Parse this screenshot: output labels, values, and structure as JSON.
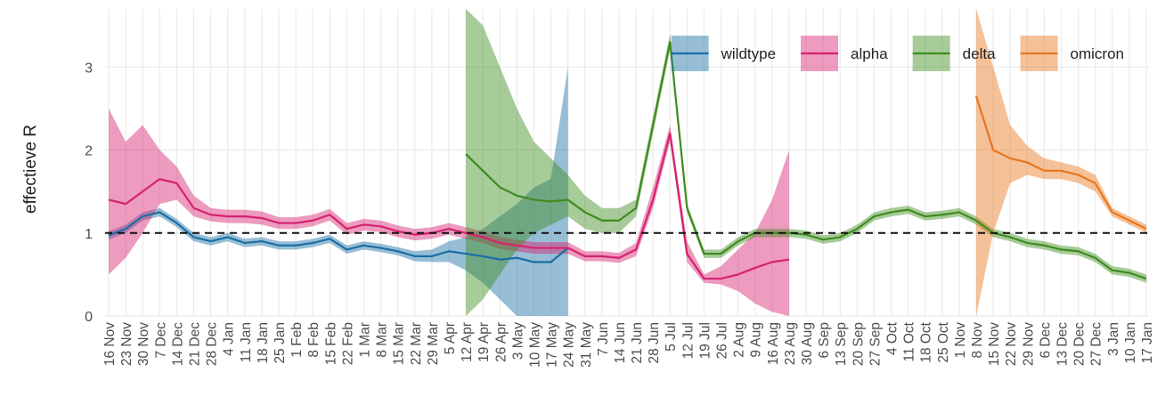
{
  "chart_data": {
    "type": "line",
    "y_label": "effectieve R",
    "categories": [
      "16 Nov",
      "23 Nov",
      "30 Nov",
      "7 Dec",
      "14 Dec",
      "21 Dec",
      "28 Dec",
      "4 Jan",
      "11 Jan",
      "18 Jan",
      "25 Jan",
      "1 Feb",
      "8 Feb",
      "15 Feb",
      "22 Feb",
      "1 Mar",
      "8 Mar",
      "15 Mar",
      "22 Mar",
      "29 Mar",
      "5 Apr",
      "12 Apr",
      "19 Apr",
      "26 Apr",
      "3 May",
      "10 May",
      "17 May",
      "24 May",
      "31 May",
      "7 Jun",
      "14 Jun",
      "21 Jun",
      "28 Jun",
      "5 Jul",
      "12 Jul",
      "19 Jul",
      "26 Jul",
      "2 Aug",
      "9 Aug",
      "16 Aug",
      "23 Aug",
      "30 Aug",
      "6 Sep",
      "13 Sep",
      "20 Sep",
      "27 Sep",
      "4 Oct",
      "11 Oct",
      "18 Oct",
      "25 Oct",
      "1 Nov",
      "8 Nov",
      "15 Nov",
      "22 Nov",
      "29 Nov",
      "6 Dec",
      "13 Dec",
      "20 Dec",
      "27 Dec",
      "3 Jan",
      "10 Jan",
      "17 Jan"
    ],
    "ylim": [
      0,
      3.7
    ],
    "yticks": [
      0,
      1,
      2,
      3
    ],
    "grid": true,
    "hline": 1,
    "legend": "top-right",
    "band_opacity": 0.45,
    "series": [
      {
        "name": "wildtype",
        "color": "#1b6ea3",
        "values": [
          0.97,
          1.05,
          1.2,
          1.25,
          1.12,
          0.95,
          0.9,
          0.95,
          0.88,
          0.9,
          0.85,
          0.85,
          0.88,
          0.93,
          0.8,
          0.85,
          0.82,
          0.78,
          0.72,
          0.72,
          0.78,
          0.75,
          0.72,
          0.68,
          0.7,
          0.65,
          0.65,
          0.82,
          null,
          null,
          null,
          null,
          null,
          null,
          null,
          null,
          null,
          null,
          null,
          null,
          null,
          null,
          null,
          null,
          null,
          null,
          null,
          null,
          null,
          null,
          null,
          null,
          null,
          null,
          null,
          null,
          null,
          null,
          null,
          null,
          null,
          null
        ],
        "lower": [
          0.92,
          1.0,
          1.15,
          1.2,
          1.07,
          0.9,
          0.85,
          0.9,
          0.83,
          0.85,
          0.8,
          0.8,
          0.83,
          0.88,
          0.75,
          0.8,
          0.77,
          0.73,
          0.66,
          0.65,
          0.65,
          0.55,
          0.4,
          0.2,
          0,
          0,
          0,
          0,
          null,
          null,
          null,
          null,
          null,
          null,
          null,
          null,
          null,
          null,
          null,
          null,
          null,
          null,
          null,
          null,
          null,
          null,
          null,
          null,
          null,
          null,
          null,
          null,
          null,
          null,
          null,
          null,
          null,
          null,
          null,
          null,
          null,
          null
        ],
        "upper": [
          1.02,
          1.1,
          1.25,
          1.3,
          1.17,
          1.0,
          0.95,
          1.0,
          0.93,
          0.95,
          0.9,
          0.9,
          0.93,
          0.98,
          0.85,
          0.9,
          0.87,
          0.83,
          0.78,
          0.8,
          0.9,
          0.95,
          1.05,
          1.2,
          1.35,
          1.55,
          1.65,
          3.0,
          null,
          null,
          null,
          null,
          null,
          null,
          null,
          null,
          null,
          null,
          null,
          null,
          null,
          null,
          null,
          null,
          null,
          null,
          null,
          null,
          null,
          null,
          null,
          null,
          null,
          null,
          null,
          null,
          null,
          null,
          null,
          null,
          null,
          null
        ]
      },
      {
        "name": "alpha",
        "color": "#d6226e",
        "values": [
          1.4,
          1.35,
          1.5,
          1.65,
          1.6,
          1.3,
          1.22,
          1.2,
          1.2,
          1.18,
          1.12,
          1.12,
          1.15,
          1.22,
          1.05,
          1.1,
          1.08,
          1.02,
          0.98,
          1.0,
          1.05,
          1.0,
          0.95,
          0.88,
          0.85,
          0.82,
          0.82,
          0.82,
          0.72,
          0.72,
          0.7,
          0.8,
          1.4,
          2.2,
          0.75,
          0.45,
          0.45,
          0.5,
          0.58,
          0.65,
          0.68,
          null,
          null,
          null,
          null,
          null,
          null,
          null,
          null,
          null,
          null,
          null,
          null,
          null,
          null,
          null,
          null,
          null,
          null,
          null,
          null,
          null
        ],
        "lower": [
          0.5,
          0.7,
          1.0,
          1.35,
          1.4,
          1.2,
          1.14,
          1.12,
          1.12,
          1.1,
          1.05,
          1.05,
          1.08,
          1.15,
          0.98,
          1.03,
          1.01,
          0.95,
          0.91,
          0.93,
          0.98,
          0.93,
          0.88,
          0.81,
          0.78,
          0.75,
          0.75,
          0.75,
          0.66,
          0.66,
          0.64,
          0.72,
          1.3,
          2.1,
          0.65,
          0.4,
          0.38,
          0.3,
          0.15,
          0.05,
          0,
          null,
          null,
          null,
          null,
          null,
          null,
          null,
          null,
          null,
          null,
          null,
          null,
          null,
          null,
          null,
          null,
          null,
          null,
          null,
          null,
          null
        ],
        "upper": [
          2.5,
          2.1,
          2.3,
          2.0,
          1.8,
          1.45,
          1.3,
          1.28,
          1.28,
          1.26,
          1.19,
          1.19,
          1.22,
          1.29,
          1.12,
          1.17,
          1.15,
          1.09,
          1.05,
          1.07,
          1.12,
          1.07,
          1.02,
          0.95,
          0.92,
          0.89,
          0.89,
          0.89,
          0.78,
          0.78,
          0.76,
          0.88,
          1.55,
          2.3,
          0.9,
          0.5,
          0.6,
          0.8,
          1.0,
          1.4,
          2.0,
          null,
          null,
          null,
          null,
          null,
          null,
          null,
          null,
          null,
          null,
          null,
          null,
          null,
          null,
          null,
          null,
          null,
          null,
          null,
          null,
          null
        ]
      },
      {
        "name": "delta",
        "color": "#3f8b1f",
        "values": [
          null,
          null,
          null,
          null,
          null,
          null,
          null,
          null,
          null,
          null,
          null,
          null,
          null,
          null,
          null,
          null,
          null,
          null,
          null,
          null,
          null,
          1.95,
          1.75,
          1.55,
          1.45,
          1.4,
          1.38,
          1.4,
          1.25,
          1.15,
          1.15,
          1.3,
          2.3,
          3.3,
          1.3,
          0.75,
          0.75,
          0.9,
          1.0,
          1.0,
          1.0,
          0.98,
          0.92,
          0.95,
          1.05,
          1.2,
          1.25,
          1.28,
          1.2,
          1.22,
          1.25,
          1.15,
          1.0,
          0.95,
          0.88,
          0.85,
          0.8,
          0.78,
          0.7,
          0.55,
          0.52,
          0.45
        ],
        "lower": [
          null,
          null,
          null,
          null,
          null,
          null,
          null,
          null,
          null,
          null,
          null,
          null,
          null,
          null,
          null,
          null,
          null,
          null,
          null,
          null,
          null,
          0,
          0.2,
          0.5,
          0.8,
          1.0,
          1.1,
          1.2,
          1.05,
          1.0,
          1.0,
          1.2,
          2.2,
          3.2,
          1.25,
          0.7,
          0.7,
          0.85,
          0.95,
          0.95,
          0.95,
          0.93,
          0.87,
          0.9,
          1.0,
          1.15,
          1.2,
          1.23,
          1.15,
          1.17,
          1.2,
          1.1,
          0.95,
          0.9,
          0.83,
          0.8,
          0.75,
          0.73,
          0.65,
          0.5,
          0.47,
          0.4
        ],
        "upper": [
          null,
          null,
          null,
          null,
          null,
          null,
          null,
          null,
          null,
          null,
          null,
          null,
          null,
          null,
          null,
          null,
          null,
          null,
          null,
          null,
          null,
          3.7,
          3.5,
          3.0,
          2.5,
          2.1,
          1.9,
          1.7,
          1.45,
          1.3,
          1.3,
          1.4,
          2.4,
          3.4,
          1.35,
          0.8,
          0.8,
          0.95,
          1.05,
          1.05,
          1.05,
          1.03,
          0.97,
          1.0,
          1.1,
          1.25,
          1.3,
          1.33,
          1.25,
          1.27,
          1.3,
          1.2,
          1.05,
          1.0,
          0.93,
          0.9,
          0.85,
          0.83,
          0.75,
          0.6,
          0.57,
          0.5
        ]
      },
      {
        "name": "omicron",
        "color": "#e8761c",
        "values": [
          null,
          null,
          null,
          null,
          null,
          null,
          null,
          null,
          null,
          null,
          null,
          null,
          null,
          null,
          null,
          null,
          null,
          null,
          null,
          null,
          null,
          null,
          null,
          null,
          null,
          null,
          null,
          null,
          null,
          null,
          null,
          null,
          null,
          null,
          null,
          null,
          null,
          null,
          null,
          null,
          null,
          null,
          null,
          null,
          null,
          null,
          null,
          null,
          null,
          null,
          null,
          2.65,
          2.0,
          1.9,
          1.85,
          1.75,
          1.75,
          1.7,
          1.6,
          1.25,
          1.15,
          1.05
        ],
        "lower": [
          null,
          null,
          null,
          null,
          null,
          null,
          null,
          null,
          null,
          null,
          null,
          null,
          null,
          null,
          null,
          null,
          null,
          null,
          null,
          null,
          null,
          null,
          null,
          null,
          null,
          null,
          null,
          null,
          null,
          null,
          null,
          null,
          null,
          null,
          null,
          null,
          null,
          null,
          null,
          null,
          null,
          null,
          null,
          null,
          null,
          null,
          null,
          null,
          null,
          null,
          null,
          0,
          1.0,
          1.6,
          1.7,
          1.65,
          1.65,
          1.6,
          1.5,
          1.2,
          1.1,
          1.0
        ],
        "upper": [
          null,
          null,
          null,
          null,
          null,
          null,
          null,
          null,
          null,
          null,
          null,
          null,
          null,
          null,
          null,
          null,
          null,
          null,
          null,
          null,
          null,
          null,
          null,
          null,
          null,
          null,
          null,
          null,
          null,
          null,
          null,
          null,
          null,
          null,
          null,
          null,
          null,
          null,
          null,
          null,
          null,
          null,
          null,
          null,
          null,
          null,
          null,
          null,
          null,
          null,
          null,
          3.7,
          3.0,
          2.3,
          2.05,
          1.9,
          1.85,
          1.8,
          1.7,
          1.3,
          1.2,
          1.1
        ]
      }
    ]
  }
}
